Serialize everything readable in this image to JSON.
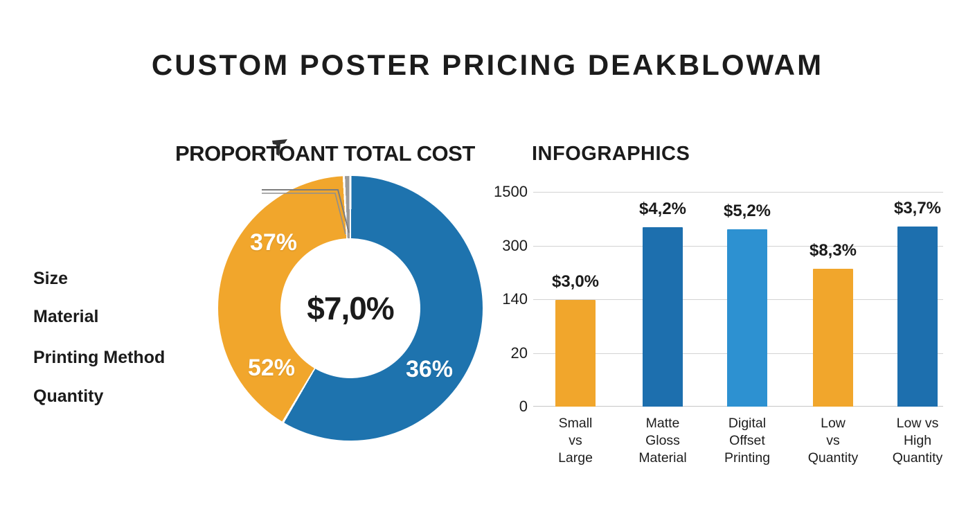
{
  "page": {
    "title": "CUSTOM POSTER PRICING DEAKBLOWAM",
    "background_color": "#FFFFFF",
    "text_color": "#1B1B1B"
  },
  "factors": {
    "items": [
      "Size",
      "Material",
      "Printing Method",
      "Quantity"
    ]
  },
  "chart_data": [
    {
      "type": "pie",
      "variant": "donut",
      "title": "PROPORTOANT TOTAL COST",
      "center_label": "$7,0%",
      "label_color": "#FFFFFF",
      "legend_position": "none",
      "segments": [
        {
          "name": "blue-segment",
          "color": "#1E73AE",
          "visual_fraction": 0.585,
          "label": "36%"
        },
        {
          "name": "orange-segment",
          "color": "#F1A62C",
          "visual_fraction": 0.407,
          "labels": [
            "37%",
            "52%"
          ]
        },
        {
          "name": "gray-sliver",
          "color": "#9B9B9B",
          "visual_fraction": 0.008,
          "label": ""
        }
      ]
    },
    {
      "type": "bar",
      "title": "INFOGRAPHICS",
      "categories": [
        "Small\nvs\nLarge",
        "Matte\nGloss\nMaterial",
        "Digital\nOffset\nPrinting",
        "Low\nvs\nQuantity",
        "Low vs\nHigh\nQuantity"
      ],
      "value_labels": [
        "$3,0%",
        "$4,2%",
        "$5,2%",
        "$8,3%",
        "$3,7%"
      ],
      "bar_heights_fraction_of_axis": [
        0.497,
        0.836,
        0.826,
        0.642,
        0.839
      ],
      "bar_colors": [
        "#F1A62C",
        "#1D6FAE",
        "#2D91D1",
        "#F1A62C",
        "#1D6FAE"
      ],
      "y_ticks_top_to_bottom": [
        "1500",
        "300",
        "140",
        "20",
        "0"
      ],
      "grid": true,
      "legend_position": "none",
      "grid_color": "#D3D3D3"
    }
  ]
}
